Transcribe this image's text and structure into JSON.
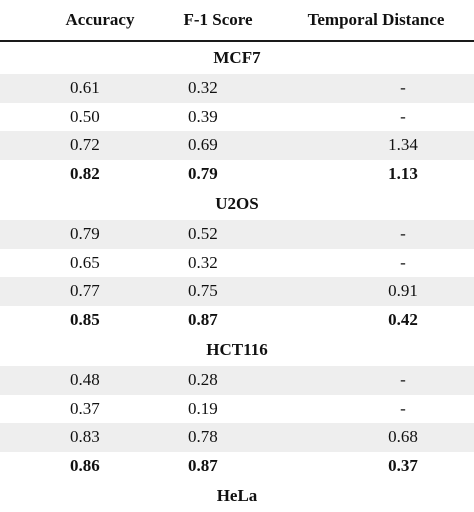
{
  "columns": [
    "Accuracy",
    "F-1 Score",
    "Temporal Distance"
  ],
  "groups": [
    {
      "name": "MCF7",
      "rows": [
        {
          "accuracy": "0.61",
          "f1": "0.32",
          "temporal": "-"
        },
        {
          "accuracy": "0.50",
          "f1": "0.39",
          "temporal": "-"
        },
        {
          "accuracy": "0.72",
          "f1": "0.69",
          "temporal": "1.34"
        },
        {
          "accuracy": "0.82",
          "f1": "0.79",
          "temporal": "1.13"
        }
      ]
    },
    {
      "name": "U2OS",
      "rows": [
        {
          "accuracy": "0.79",
          "f1": "0.52",
          "temporal": "-"
        },
        {
          "accuracy": "0.65",
          "f1": "0.32",
          "temporal": "-"
        },
        {
          "accuracy": "0.77",
          "f1": "0.75",
          "temporal": "0.91"
        },
        {
          "accuracy": "0.85",
          "f1": "0.87",
          "temporal": "0.42"
        }
      ]
    },
    {
      "name": "HCT116",
      "rows": [
        {
          "accuracy": "0.48",
          "f1": "0.28",
          "temporal": "-"
        },
        {
          "accuracy": "0.37",
          "f1": "0.19",
          "temporal": "-"
        },
        {
          "accuracy": "0.83",
          "f1": "0.78",
          "temporal": "0.68"
        },
        {
          "accuracy": "0.86",
          "f1": "0.87",
          "temporal": "0.37"
        }
      ]
    },
    {
      "name": "HeLa",
      "rows": []
    }
  ],
  "colors": {
    "shade": "#eeeeee",
    "text": "#111111"
  }
}
